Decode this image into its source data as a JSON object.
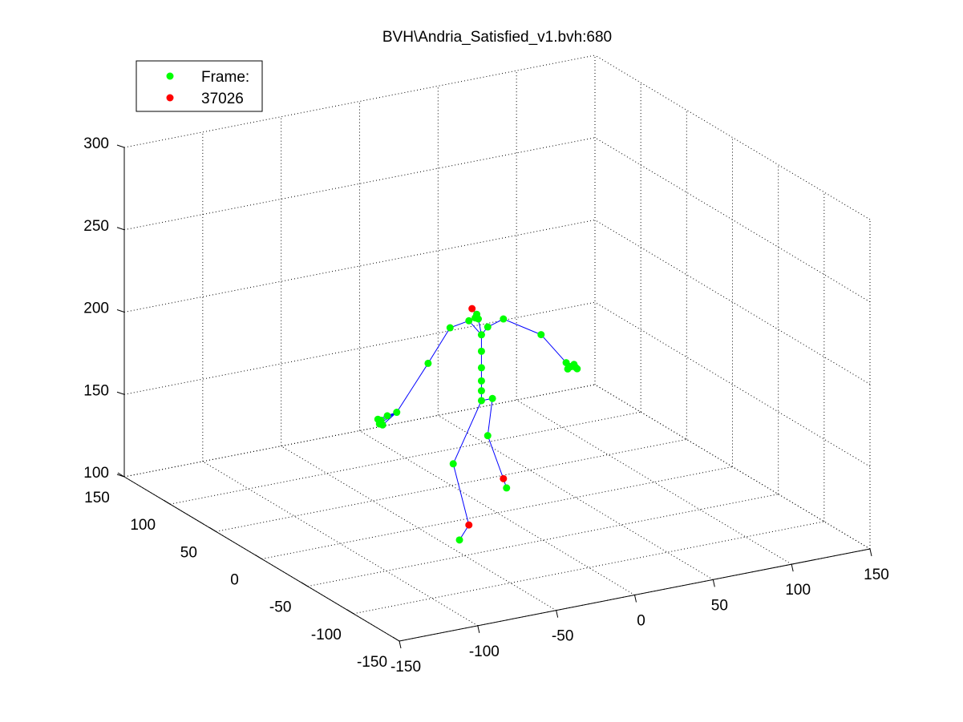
{
  "chart_data": {
    "type": "scatter",
    "title": "BVH\\Andria_Satisfied_v1.bvh:680",
    "xlim": [
      -150,
      150
    ],
    "ylim": [
      -150,
      150
    ],
    "zlim": [
      100,
      300
    ],
    "x_ticks": [
      -150,
      -100,
      -50,
      0,
      50,
      100,
      150
    ],
    "y_ticks": [
      -150,
      -100,
      -50,
      0,
      50,
      100,
      150
    ],
    "z_ticks": [
      100,
      150,
      200,
      250,
      300
    ],
    "grid": true,
    "legend": {
      "placement": "top-left",
      "entries": [
        {
          "label": "Frame:",
          "color": "#00ff00"
        },
        {
          "label": "37026",
          "color": "#ff0000"
        }
      ]
    },
    "colors": {
      "joint": "#00ff00",
      "end_site": "#ff0000",
      "bone": "#0000ff"
    },
    "joints": [
      {
        "id": "hips",
        "x": -10,
        "y": 0,
        "z": 170,
        "type": "joint"
      },
      {
        "id": "spine1",
        "x": -10,
        "y": 0,
        "z": 176,
        "type": "joint"
      },
      {
        "id": "spine2",
        "x": -10,
        "y": 0,
        "z": 182,
        "type": "joint"
      },
      {
        "id": "spine3",
        "x": -10,
        "y": 0,
        "z": 190,
        "type": "joint"
      },
      {
        "id": "spine4",
        "x": -10,
        "y": 0,
        "z": 200,
        "type": "joint"
      },
      {
        "id": "neck",
        "x": -10,
        "y": 0,
        "z": 210,
        "type": "joint"
      },
      {
        "id": "head1",
        "x": -12,
        "y": 0,
        "z": 220,
        "type": "joint"
      },
      {
        "id": "head2",
        "x": -14,
        "y": 0,
        "z": 221,
        "type": "joint"
      },
      {
        "id": "head3",
        "x": -13,
        "y": 0,
        "z": 223,
        "type": "joint"
      },
      {
        "id": "head_end",
        "x": -16,
        "y": 0,
        "z": 227,
        "type": "end"
      },
      {
        "id": "hip_r",
        "x": -3,
        "y": 0,
        "z": 170,
        "type": "joint"
      },
      {
        "id": "knee_r",
        "x": -6,
        "y": 0,
        "z": 148,
        "type": "joint"
      },
      {
        "id": "ankle_r",
        "x": 4,
        "y": 0,
        "z": 120,
        "type": "end"
      },
      {
        "id": "toe_r",
        "x": 6,
        "y": 0,
        "z": 114,
        "type": "joint"
      },
      {
        "id": "knee_l",
        "x": -28,
        "y": 0,
        "z": 135,
        "type": "joint"
      },
      {
        "id": "ankle_l",
        "x": -18,
        "y": 0,
        "z": 96,
        "type": "end"
      },
      {
        "id": "toe_l",
        "x": -24,
        "y": 0,
        "z": 88,
        "type": "joint"
      },
      {
        "id": "clav_r",
        "x": -6,
        "y": 0,
        "z": 214,
        "type": "joint"
      },
      {
        "id": "shoulder_r",
        "x": 4,
        "y": 0,
        "z": 217,
        "type": "joint"
      },
      {
        "id": "elbow_r",
        "x": 28,
        "y": 0,
        "z": 203,
        "type": "joint"
      },
      {
        "id": "wrist_r",
        "x": 44,
        "y": 0,
        "z": 183,
        "type": "joint"
      },
      {
        "id": "hand_r1",
        "x": 47,
        "y": 0,
        "z": 180,
        "type": "joint"
      },
      {
        "id": "hand_r2",
        "x": 49,
        "y": 0,
        "z": 181,
        "type": "joint"
      },
      {
        "id": "hand_r3",
        "x": 50,
        "y": 0,
        "z": 179,
        "type": "joint"
      },
      {
        "id": "hand_r4",
        "x": 51,
        "y": 0,
        "z": 178,
        "type": "joint"
      },
      {
        "id": "hand_r5",
        "x": 45,
        "y": 0,
        "z": 179,
        "type": "joint"
      },
      {
        "id": "clav_l",
        "x": -18,
        "y": 0,
        "z": 220,
        "type": "joint"
      },
      {
        "id": "shoulder_l",
        "x": -30,
        "y": 0,
        "z": 218,
        "type": "joint"
      },
      {
        "id": "elbow_l",
        "x": -44,
        "y": 0,
        "z": 199,
        "type": "joint"
      },
      {
        "id": "wrist_l",
        "x": -64,
        "y": 0,
        "z": 173,
        "type": "joint"
      },
      {
        "id": "hand_l1",
        "x": -70,
        "y": 0,
        "z": 172,
        "type": "joint"
      },
      {
        "id": "hand_l2",
        "x": -74,
        "y": 0,
        "z": 170,
        "type": "joint"
      },
      {
        "id": "hand_l3",
        "x": -75,
        "y": 0,
        "z": 168,
        "type": "joint"
      },
      {
        "id": "hand_l4",
        "x": -73,
        "y": 0,
        "z": 167,
        "type": "joint"
      },
      {
        "id": "hand_l5",
        "x": -76,
        "y": 0,
        "z": 171,
        "type": "joint"
      }
    ],
    "bones": [
      [
        "hips",
        "spine1"
      ],
      [
        "spine1",
        "spine2"
      ],
      [
        "spine2",
        "spine3"
      ],
      [
        "spine3",
        "spine4"
      ],
      [
        "spine4",
        "neck"
      ],
      [
        "neck",
        "head1"
      ],
      [
        "head1",
        "head2"
      ],
      [
        "head2",
        "head3"
      ],
      [
        "head3",
        "head_end"
      ],
      [
        "hips",
        "hip_r"
      ],
      [
        "hip_r",
        "knee_r"
      ],
      [
        "knee_r",
        "ankle_r"
      ],
      [
        "ankle_r",
        "toe_r"
      ],
      [
        "hips",
        "knee_l"
      ],
      [
        "knee_l",
        "ankle_l"
      ],
      [
        "ankle_l",
        "toe_l"
      ],
      [
        "neck",
        "clav_r"
      ],
      [
        "clav_r",
        "shoulder_r"
      ],
      [
        "shoulder_r",
        "elbow_r"
      ],
      [
        "elbow_r",
        "wrist_r"
      ],
      [
        "wrist_r",
        "hand_r1"
      ],
      [
        "wrist_r",
        "hand_r2"
      ],
      [
        "wrist_r",
        "hand_r3"
      ],
      [
        "wrist_r",
        "hand_r4"
      ],
      [
        "wrist_r",
        "hand_r5"
      ],
      [
        "neck",
        "clav_l"
      ],
      [
        "clav_l",
        "shoulder_l"
      ],
      [
        "shoulder_l",
        "elbow_l"
      ],
      [
        "elbow_l",
        "wrist_l"
      ],
      [
        "wrist_l",
        "hand_l1"
      ],
      [
        "wrist_l",
        "hand_l2"
      ],
      [
        "wrist_l",
        "hand_l3"
      ],
      [
        "wrist_l",
        "hand_l4"
      ],
      [
        "wrist_l",
        "hand_l5"
      ]
    ]
  }
}
